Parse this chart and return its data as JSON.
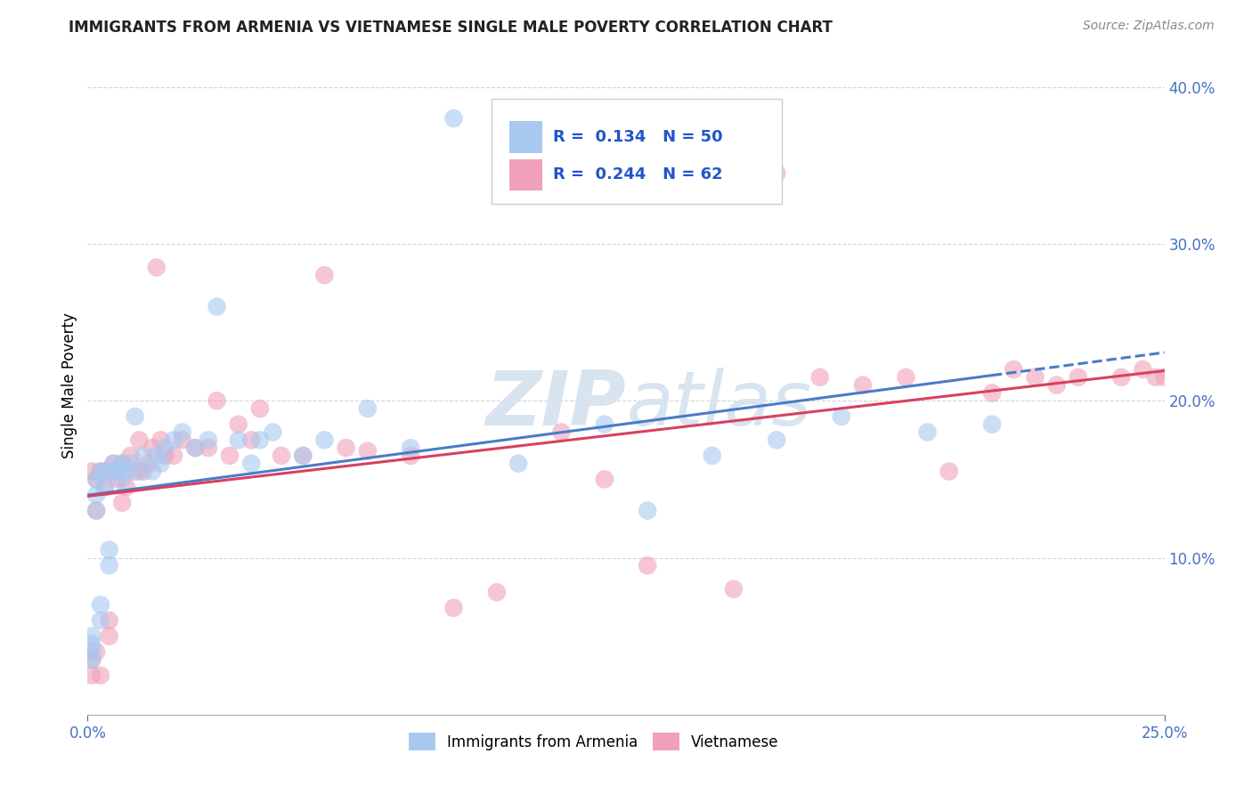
{
  "title": "IMMIGRANTS FROM ARMENIA VS VIETNAMESE SINGLE MALE POVERTY CORRELATION CHART",
  "source": "Source: ZipAtlas.com",
  "ylabel": "Single Male Poverty",
  "xlim": [
    0.0,
    0.25
  ],
  "ylim": [
    0.0,
    0.42
  ],
  "ytick_vals": [
    0.1,
    0.2,
    0.3,
    0.4
  ],
  "xtick_vals": [
    0.0,
    0.25
  ],
  "legend_label1": "Immigrants from Armenia",
  "legend_label2": "Vietnamese",
  "r1": 0.134,
  "n1": 50,
  "r2": 0.244,
  "n2": 62,
  "color1": "#a8c8f0",
  "color2": "#f0a0b8",
  "line_color1": "#4a7cc7",
  "line_color2": "#d94060",
  "background_color": "#ffffff",
  "grid_color": "#d0d0d0",
  "watermark_color": "#d8e4f0",
  "scatter1_x": [
    0.001,
    0.001,
    0.001,
    0.001,
    0.002,
    0.002,
    0.002,
    0.003,
    0.003,
    0.003,
    0.004,
    0.004,
    0.005,
    0.005,
    0.006,
    0.006,
    0.007,
    0.008,
    0.008,
    0.009,
    0.01,
    0.011,
    0.012,
    0.013,
    0.015,
    0.016,
    0.017,
    0.018,
    0.02,
    0.022,
    0.025,
    0.028,
    0.03,
    0.035,
    0.038,
    0.04,
    0.043,
    0.05,
    0.055,
    0.065,
    0.075,
    0.085,
    0.1,
    0.12,
    0.13,
    0.145,
    0.16,
    0.175,
    0.195,
    0.21
  ],
  "scatter1_y": [
    0.035,
    0.04,
    0.045,
    0.05,
    0.13,
    0.14,
    0.15,
    0.06,
    0.07,
    0.155,
    0.145,
    0.155,
    0.095,
    0.105,
    0.155,
    0.16,
    0.155,
    0.15,
    0.16,
    0.155,
    0.16,
    0.19,
    0.155,
    0.165,
    0.155,
    0.165,
    0.16,
    0.17,
    0.175,
    0.18,
    0.17,
    0.175,
    0.26,
    0.175,
    0.16,
    0.175,
    0.18,
    0.165,
    0.175,
    0.195,
    0.17,
    0.38,
    0.16,
    0.185,
    0.13,
    0.165,
    0.175,
    0.19,
    0.18,
    0.185
  ],
  "scatter2_x": [
    0.001,
    0.001,
    0.001,
    0.002,
    0.002,
    0.002,
    0.003,
    0.003,
    0.004,
    0.004,
    0.005,
    0.005,
    0.006,
    0.006,
    0.007,
    0.008,
    0.008,
    0.009,
    0.01,
    0.011,
    0.012,
    0.013,
    0.014,
    0.015,
    0.016,
    0.017,
    0.018,
    0.02,
    0.022,
    0.025,
    0.028,
    0.03,
    0.033,
    0.035,
    0.038,
    0.04,
    0.045,
    0.05,
    0.055,
    0.06,
    0.065,
    0.075,
    0.085,
    0.095,
    0.11,
    0.12,
    0.13,
    0.15,
    0.16,
    0.17,
    0.18,
    0.19,
    0.2,
    0.21,
    0.215,
    0.22,
    0.225,
    0.23,
    0.24,
    0.245,
    0.248,
    0.25
  ],
  "scatter2_y": [
    0.025,
    0.035,
    0.155,
    0.04,
    0.13,
    0.15,
    0.025,
    0.155,
    0.145,
    0.155,
    0.05,
    0.06,
    0.155,
    0.16,
    0.15,
    0.135,
    0.16,
    0.145,
    0.165,
    0.155,
    0.175,
    0.155,
    0.16,
    0.17,
    0.285,
    0.175,
    0.165,
    0.165,
    0.175,
    0.17,
    0.17,
    0.2,
    0.165,
    0.185,
    0.175,
    0.195,
    0.165,
    0.165,
    0.28,
    0.17,
    0.168,
    0.165,
    0.068,
    0.078,
    0.18,
    0.15,
    0.095,
    0.08,
    0.345,
    0.215,
    0.21,
    0.215,
    0.155,
    0.205,
    0.22,
    0.215,
    0.21,
    0.215,
    0.215,
    0.22,
    0.215,
    0.215
  ]
}
